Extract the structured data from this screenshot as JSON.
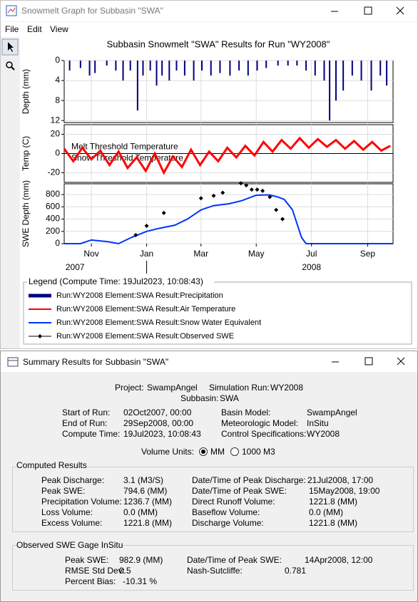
{
  "window1": {
    "title": "Snowmelt Graph for Subbasin \"SWA\"",
    "menu": [
      "File",
      "Edit",
      "View"
    ],
    "chart": {
      "title": "Subbasin Snowmelt \"SWA\" Results for Run \"WY2008\"",
      "xlim": [
        "2007-10-02",
        "2008-09-29"
      ],
      "xticks": [
        {
          "value": "2007-11-01",
          "label": "Nov"
        },
        {
          "value": "2008-01-01",
          "label": "Jan"
        },
        {
          "value": "2008-03-01",
          "label": "Mar"
        },
        {
          "value": "2008-05-01",
          "label": "May"
        },
        {
          "value": "2008-07-01",
          "label": "Jul"
        },
        {
          "value": "2008-09-01",
          "label": "Sep"
        }
      ],
      "year_labels": [
        {
          "value": "2007-10-14",
          "label": "2007"
        },
        {
          "value": "2008-07-01",
          "label": "2008"
        }
      ],
      "grid": true,
      "panels": [
        {
          "type": "bar",
          "ylabel": "Depth (mm)",
          "ylim": [
            0,
            12.4
          ],
          "yticks": [
            0,
            4,
            8,
            12
          ],
          "invert_y": true,
          "series": [
            {
              "name": "Run:WY2008 Element:SWA Result:Precipitation",
              "color": "#000080",
              "x": [
                "2007-10-08",
                "2007-10-20",
                "2007-10-30",
                "2007-11-05",
                "2007-11-18",
                "2007-11-28",
                "2007-12-06",
                "2007-12-14",
                "2007-12-22",
                "2007-12-28",
                "2008-01-05",
                "2008-01-12",
                "2008-01-18",
                "2008-01-26",
                "2008-02-03",
                "2008-02-12",
                "2008-02-22",
                "2008-03-02",
                "2008-03-12",
                "2008-03-22",
                "2008-04-02",
                "2008-04-12",
                "2008-04-22",
                "2008-05-02",
                "2008-05-12",
                "2008-05-25",
                "2008-06-05",
                "2008-06-15",
                "2008-06-25",
                "2008-07-05",
                "2008-07-15",
                "2008-07-21",
                "2008-07-28",
                "2008-08-05",
                "2008-08-15",
                "2008-08-25",
                "2008-09-05",
                "2008-09-15",
                "2008-09-22"
              ],
              "values": [
                2,
                1.5,
                3,
                2.5,
                1,
                2,
                4,
                2,
                10,
                3,
                2,
                5,
                3,
                4,
                2,
                3,
                4,
                2,
                3,
                2.5,
                3,
                2,
                3,
                2,
                1.5,
                1,
                1,
                1,
                2,
                3,
                4,
                12,
                8,
                6,
                3,
                4,
                6,
                3,
                5
              ]
            }
          ]
        },
        {
          "type": "line",
          "ylabel": "Temp (C)",
          "ylim": [
            -30,
            30
          ],
          "yticks": [
            20,
            0,
            -20
          ],
          "thresholds": [
            {
              "label": "Melt Threshold Temperature",
              "value": 0
            },
            {
              "label": "Snow Threshold Temperature",
              "value": 0
            }
          ],
          "series": [
            {
              "name": "Run:WY2008 Element:SWA Result:Air Temperature",
              "color": "#ff0000",
              "x": [
                "2007-10-02",
                "2007-10-12",
                "2007-10-22",
                "2007-11-01",
                "2007-11-11",
                "2007-11-21",
                "2007-12-01",
                "2007-12-11",
                "2007-12-21",
                "2007-12-31",
                "2008-01-10",
                "2008-01-20",
                "2008-01-30",
                "2008-02-09",
                "2008-02-19",
                "2008-02-29",
                "2008-03-10",
                "2008-03-20",
                "2008-03-30",
                "2008-04-09",
                "2008-04-19",
                "2008-04-29",
                "2008-05-09",
                "2008-05-19",
                "2008-05-29",
                "2008-06-08",
                "2008-06-18",
                "2008-06-28",
                "2008-07-08",
                "2008-07-18",
                "2008-07-28",
                "2008-08-07",
                "2008-08-17",
                "2008-08-27",
                "2008-09-06",
                "2008-09-16",
                "2008-09-26"
              ],
              "values": [
                5,
                -8,
                6,
                -6,
                3,
                -12,
                2,
                -15,
                -4,
                -18,
                0,
                -20,
                -3,
                -14,
                4,
                -12,
                2,
                -8,
                6,
                -4,
                8,
                -2,
                12,
                2,
                14,
                5,
                16,
                6,
                15,
                7,
                14,
                5,
                13,
                4,
                12,
                3,
                8
              ]
            }
          ]
        },
        {
          "type": "line",
          "ylabel": "SWE Depth (mm)",
          "ylim": [
            0,
            975
          ],
          "yticks": [
            0,
            200,
            400,
            600,
            800
          ],
          "series": [
            {
              "name": "Run:WY2008 Element:SWA Result:Snow Water Equivalent",
              "color": "#0033ff",
              "x": [
                "2007-10-02",
                "2007-10-20",
                "2007-11-01",
                "2007-11-20",
                "2007-12-01",
                "2007-12-15",
                "2008-01-01",
                "2008-01-15",
                "2008-02-01",
                "2008-02-15",
                "2008-03-01",
                "2008-03-15",
                "2008-04-01",
                "2008-04-15",
                "2008-05-01",
                "2008-05-15",
                "2008-05-25",
                "2008-06-01",
                "2008-06-10",
                "2008-06-20",
                "2008-06-25",
                "2008-09-29"
              ],
              "values": [
                0,
                0,
                60,
                30,
                0,
                100,
                200,
                250,
                300,
                400,
                550,
                620,
                650,
                700,
                790,
                795,
                760,
                720,
                550,
                100,
                0,
                0
              ]
            },
            {
              "name": "Run:WY2008 Element:SWA Result:Observed SWE",
              "color": "#000000",
              "markers": true,
              "line": false,
              "x": [
                "2007-12-20",
                "2008-01-01",
                "2008-01-20",
                "2008-03-01",
                "2008-03-15",
                "2008-03-25",
                "2008-04-14",
                "2008-04-20",
                "2008-04-26",
                "2008-05-02",
                "2008-05-08",
                "2008-05-16",
                "2008-05-23",
                "2008-05-30"
              ],
              "values": [
                140,
                290,
                500,
                740,
                780,
                830,
                983,
                950,
                880,
                880,
                860,
                760,
                550,
                400
              ]
            }
          ]
        }
      ],
      "legend_title": "Legend (Compute Time: 19Jul2023, 10:08:43)"
    }
  },
  "window2": {
    "title": "Summary Results for Subbasin \"SWA\"",
    "header": [
      {
        "label": "Project:",
        "value": "SwampAngel"
      },
      {
        "label": "Simulation Run:",
        "value": "WY2008"
      },
      {
        "label": "Subbasin:",
        "value": "SWA"
      }
    ],
    "run_info": [
      {
        "label": "Start of Run:",
        "value": "02Oct2007, 00:00"
      },
      {
        "label": "End of Run:",
        "value": "29Sep2008, 00:00"
      },
      {
        "label": "Compute Time:",
        "value": "19Jul2023, 10:08:43"
      },
      {
        "label": "Basin Model:",
        "value": "SwampAngel"
      },
      {
        "label": "Meteorologic Model:",
        "value": "InSitu"
      },
      {
        "label": "Control Specifications:",
        "value": "WY2008"
      }
    ],
    "volume_units": {
      "label": "Volume Units:",
      "options": [
        "MM",
        "1000 M3"
      ],
      "selected": 0
    },
    "computed": {
      "title": "Computed Results",
      "fields": [
        {
          "label": "Peak Discharge:",
          "value": "3.1 (M3/S)"
        },
        {
          "label": "Peak SWE:",
          "value": "794.6 (MM)"
        },
        {
          "label": "Precipitation Volume:",
          "value": "1236.7 (MM)"
        },
        {
          "label": "Loss Volume:",
          "value": "0.0 (MM)"
        },
        {
          "label": "Excess Volume:",
          "value": "1221.8 (MM)"
        },
        {
          "label": "Date/Time of Peak Discharge:",
          "value": "21Jul2008, 17:00"
        },
        {
          "label": "Date/Time of Peak SWE:",
          "value": "15May2008, 19:00"
        },
        {
          "label": "Direct Runoff Volume:",
          "value": "1221.8 (MM)"
        },
        {
          "label": "Baseflow Volume:",
          "value": "0.0 (MM)"
        },
        {
          "label": "Discharge Volume:",
          "value": "1221.8 (MM)"
        }
      ]
    },
    "observed": {
      "title": "Observed SWE Gage InSitu",
      "fields": [
        {
          "label": "Peak SWE:",
          "value": "982.9 (MM)"
        },
        {
          "label": "RMSE Std Dev:",
          "value": "0.5"
        },
        {
          "label": "Percent Bias:",
          "value": "-10.31 %"
        },
        {
          "label": "Date/Time of Peak SWE:",
          "value": "14Apr2008, 12:00"
        },
        {
          "label": "Nash-Sutcliffe:",
          "value": "0.781"
        }
      ]
    }
  }
}
